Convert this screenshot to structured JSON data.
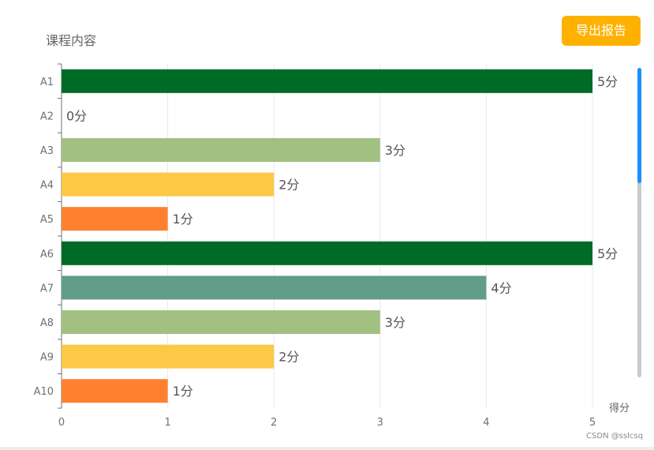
{
  "header": {
    "export_label": "导出报告"
  },
  "chart_data": {
    "type": "bar",
    "orientation": "horizontal",
    "ylabel": "课程内容",
    "xlabel": "得分",
    "categories": [
      "A1",
      "A2",
      "A3",
      "A4",
      "A5",
      "A6",
      "A7",
      "A8",
      "A9",
      "A10"
    ],
    "values": [
      5,
      0,
      3,
      2,
      1,
      5,
      4,
      3,
      2,
      1
    ],
    "value_suffix": "分",
    "xlim": [
      0,
      5
    ],
    "xticks": [
      0,
      1,
      2,
      3,
      4,
      5
    ],
    "grid": "vertical",
    "legend": "none",
    "value_colors": {
      "5": "#006B26",
      "4": "#629C8A",
      "3": "#A2C081",
      "2": "#FCC846",
      "1": "#FF812F"
    }
  },
  "watermark": "CSDN @sslcsq"
}
